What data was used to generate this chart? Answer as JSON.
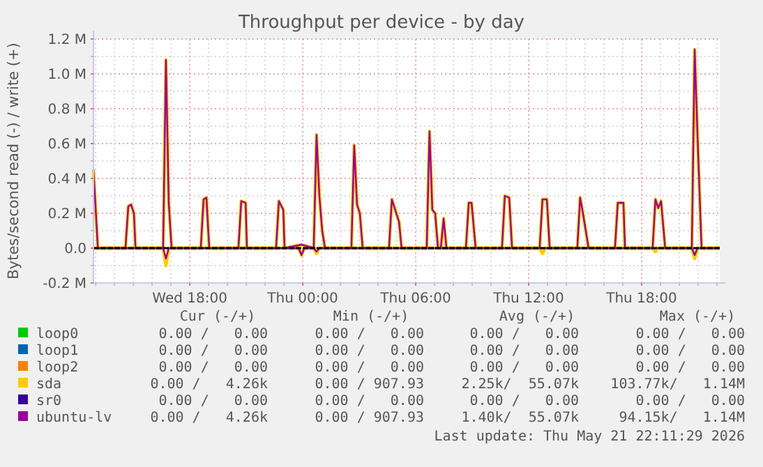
{
  "chart_data": {
    "type": "line",
    "title": "Throughput per device - by day",
    "ylabel": "Bytes/second read (-) / write (+)",
    "x": [
      "2026-05-20T12:53",
      "2026-05-20T13:07",
      "2026-05-20T14:35",
      "2026-05-20T14:44",
      "2026-05-20T14:53",
      "2026-05-20T15:02",
      "2026-05-20T15:07",
      "2026-05-20T16:35",
      "2026-05-20T16:44",
      "2026-05-20T16:53",
      "2026-05-20T17:02",
      "2026-05-20T18:35",
      "2026-05-20T18:44",
      "2026-05-20T18:53",
      "2026-05-20T19:02",
      "2026-05-20T20:35",
      "2026-05-20T20:44",
      "2026-05-20T20:58",
      "2026-05-20T21:02",
      "2026-05-20T22:35",
      "2026-05-20T22:44",
      "2026-05-20T22:58",
      "2026-05-20T23:02",
      "2026-05-20T23:56",
      "2026-05-21T00:35",
      "2026-05-21T00:44",
      "2026-05-21T00:53",
      "2026-05-21T01:02",
      "2026-05-21T01:11",
      "2026-05-21T02:35",
      "2026-05-21T02:44",
      "2026-05-21T02:53",
      "2026-05-21T03:02",
      "2026-05-21T03:11",
      "2026-05-21T04:35",
      "2026-05-21T04:44",
      "2026-05-21T05:07",
      "2026-05-21T05:15",
      "2026-05-21T06:35",
      "2026-05-21T06:44",
      "2026-05-21T06:53",
      "2026-05-21T07:02",
      "2026-05-21T07:11",
      "2026-05-21T07:20",
      "2026-05-21T07:29",
      "2026-05-21T07:38",
      "2026-05-21T08:40",
      "2026-05-21T08:49",
      "2026-05-21T08:58",
      "2026-05-21T09:11",
      "2026-05-21T10:35",
      "2026-05-21T10:44",
      "2026-05-21T10:58",
      "2026-05-21T11:07",
      "2026-05-21T12:35",
      "2026-05-21T12:44",
      "2026-05-21T12:58",
      "2026-05-21T13:07",
      "2026-05-21T14:35",
      "2026-05-21T14:44",
      "2026-05-21T14:53",
      "2026-05-21T15:11",
      "2026-05-21T16:35",
      "2026-05-21T16:44",
      "2026-05-21T17:02",
      "2026-05-21T17:07",
      "2026-05-21T18:35",
      "2026-05-21T18:44",
      "2026-05-21T18:53",
      "2026-05-21T19:02",
      "2026-05-21T19:15",
      "2026-05-21T20:40",
      "2026-05-21T20:49",
      "2026-05-21T20:58",
      "2026-05-21T21:11",
      "2026-05-21T22:09"
    ],
    "series": [
      {
        "name": "loop0",
        "color": "#00cc00",
        "values": [
          null,
          null,
          null,
          null,
          null,
          null,
          null,
          null,
          null,
          null,
          null,
          null,
          null,
          null,
          null,
          null,
          null,
          null,
          null,
          null,
          null,
          null,
          null,
          null,
          null,
          null,
          null,
          null,
          null,
          null,
          null,
          null,
          null,
          null,
          null,
          null,
          null,
          null,
          null,
          null,
          null,
          null,
          null,
          null,
          null,
          null,
          null,
          null,
          null,
          null,
          null,
          null,
          null,
          null,
          null,
          null,
          null,
          null,
          null,
          null,
          null,
          null,
          null,
          null,
          null,
          null,
          null,
          null,
          null,
          null,
          null,
          null,
          null,
          null,
          null,
          null
        ]
      },
      {
        "name": "loop1",
        "color": "#0066b3",
        "values": [
          null,
          null,
          null,
          null,
          null,
          null,
          null,
          null,
          null,
          null,
          null,
          null,
          null,
          null,
          null,
          null,
          null,
          null,
          null,
          null,
          null,
          null,
          null,
          null,
          null,
          null,
          null,
          null,
          null,
          null,
          null,
          null,
          null,
          null,
          null,
          null,
          null,
          null,
          null,
          null,
          null,
          null,
          null,
          null,
          null,
          null,
          null,
          null,
          null,
          null,
          null,
          null,
          null,
          null,
          null,
          null,
          null,
          null,
          null,
          null,
          null,
          null,
          null,
          null,
          null,
          null,
          null,
          null,
          null,
          null,
          null,
          null,
          null,
          null,
          null,
          null
        ]
      },
      {
        "name": "loop2",
        "color": "#ff8000",
        "values": [
          null,
          null,
          null,
          null,
          null,
          null,
          null,
          null,
          null,
          null,
          null,
          null,
          null,
          null,
          null,
          null,
          null,
          null,
          null,
          null,
          null,
          null,
          null,
          null,
          null,
          null,
          null,
          null,
          null,
          null,
          null,
          null,
          null,
          null,
          null,
          null,
          null,
          null,
          null,
          null,
          null,
          null,
          null,
          null,
          null,
          null,
          null,
          null,
          null,
          null,
          null,
          null,
          null,
          null,
          null,
          null,
          null,
          null,
          null,
          null,
          null,
          null,
          null,
          null,
          null,
          null,
          null,
          null,
          null,
          null,
          null,
          null,
          null,
          null,
          null,
          null
        ]
      },
      {
        "name": "sda",
        "color": "#ffcc00",
        "values": [
          0.45,
          0,
          0,
          0.24,
          0.25,
          0.2,
          0,
          0,
          1.08,
          0.26,
          0,
          0,
          0.28,
          0.29,
          0,
          0,
          0.27,
          0.26,
          0,
          0,
          0.27,
          0.22,
          0,
          0.02,
          0,
          0.65,
          0.3,
          0.1,
          0,
          0,
          0.59,
          0.25,
          0.2,
          0,
          0,
          0.28,
          0.15,
          0,
          0,
          0.67,
          0.22,
          0.2,
          0,
          0,
          0.17,
          0,
          0,
          0.26,
          0.26,
          0,
          0,
          0.3,
          0.29,
          0,
          0,
          0.28,
          0.28,
          0,
          0,
          0.29,
          0.2,
          0,
          0,
          0.26,
          0.26,
          0,
          0,
          0.28,
          0.23,
          0.27,
          0,
          0,
          1.14,
          0.65,
          0,
          0
        ]
      },
      {
        "color": "#ffcc00",
        "x": [
          "2026-05-20T12:53",
          "2026-05-20T16:35",
          "2026-05-20T16:44",
          "2026-05-20T16:53",
          "2026-05-20T23:47",
          "2026-05-20T23:56",
          "2026-05-21T00:05",
          "2026-05-21T00:35",
          "2026-05-21T00:44",
          "2026-05-21T00:53",
          "2026-05-21T12:35",
          "2026-05-21T12:44",
          "2026-05-21T12:53",
          "2026-05-21T18:35",
          "2026-05-21T18:44",
          "2026-05-21T18:53",
          "2026-05-21T20:40",
          "2026-05-21T20:49",
          "2026-05-21T20:58",
          "2026-05-21T22:09"
        ],
        "values": [
          0,
          0,
          -0.1,
          0,
          0,
          -0.04,
          0,
          0,
          -0.03,
          0,
          0,
          -0.03,
          0,
          0,
          -0.02,
          0,
          0,
          -0.06,
          0,
          0
        ]
      },
      {
        "name": "sr0",
        "color": "#330099",
        "values": [
          null,
          null,
          null,
          null,
          null,
          null,
          null,
          null,
          null,
          null,
          null,
          null,
          null,
          null,
          null,
          null,
          null,
          null,
          null,
          null,
          null,
          null,
          null,
          null,
          null,
          null,
          null,
          null,
          null,
          null,
          null,
          null,
          null,
          null,
          null,
          null,
          null,
          null,
          null,
          null,
          null,
          null,
          null,
          null,
          null,
          null,
          null,
          null,
          null,
          null,
          null,
          null,
          null,
          null,
          null,
          null,
          null,
          null,
          null,
          null,
          null,
          null,
          null,
          null,
          null,
          null,
          null,
          null,
          null,
          null,
          null,
          null,
          null,
          null,
          null,
          null
        ]
      },
      {
        "name": "ubuntu-lv",
        "color": "#990099",
        "values": [
          0.45,
          0,
          0,
          0.24,
          0.25,
          0.2,
          0,
          0,
          1.08,
          0.26,
          0,
          0,
          0.28,
          0.29,
          0,
          0,
          0.27,
          0.26,
          0,
          0,
          0.27,
          0.22,
          0,
          0.02,
          0,
          0.65,
          0.3,
          0.1,
          0,
          0,
          0.59,
          0.25,
          0.2,
          0,
          0,
          0.28,
          0.15,
          0,
          0,
          0.67,
          0.22,
          0.2,
          0,
          0,
          0.17,
          0,
          0,
          0.26,
          0.26,
          0,
          0,
          0.3,
          0.29,
          0,
          0,
          0.28,
          0.28,
          0,
          0,
          0.29,
          0.2,
          0,
          0,
          0.26,
          0.26,
          0,
          0,
          0.28,
          0.23,
          0.27,
          0,
          0,
          1.14,
          0.65,
          0,
          0
        ]
      },
      {
        "color": "#990099",
        "x": [
          "2026-05-20T12:53",
          "2026-05-20T16:35",
          "2026-05-20T16:44",
          "2026-05-20T16:53",
          "2026-05-20T23:47",
          "2026-05-20T23:56",
          "2026-05-21T00:05",
          "2026-05-21T00:35",
          "2026-05-21T00:44",
          "2026-05-21T00:53",
          "2026-05-21T20:40",
          "2026-05-21T20:49",
          "2026-05-21T20:58",
          "2026-05-21T22:09"
        ],
        "values": [
          0,
          0,
          -0.06,
          0,
          0,
          -0.04,
          0,
          0,
          -0.02,
          0,
          0,
          -0.04,
          0,
          0
        ]
      }
    ],
    "xlim": [
      "2026-05-20T12:53",
      "2026-05-21T22:09"
    ],
    "xticks": [
      {
        "value": "2026-05-20T13:00",
        "label": null
      },
      {
        "value": "2026-05-20T14:00",
        "label": null
      },
      {
        "value": "2026-05-20T15:00",
        "label": null
      },
      {
        "value": "2026-05-20T16:00",
        "label": null
      },
      {
        "value": "2026-05-20T17:00",
        "label": null
      },
      {
        "value": "2026-05-20T18:00",
        "label": "Wed 18:00"
      },
      {
        "value": "2026-05-20T19:00",
        "label": null
      },
      {
        "value": "2026-05-20T20:00",
        "label": null
      },
      {
        "value": "2026-05-20T21:00",
        "label": null
      },
      {
        "value": "2026-05-20T22:00",
        "label": null
      },
      {
        "value": "2026-05-20T23:00",
        "label": null
      },
      {
        "value": "2026-05-21T00:00",
        "label": "Thu 00:00"
      },
      {
        "value": "2026-05-21T01:00",
        "label": null
      },
      {
        "value": "2026-05-21T02:00",
        "label": null
      },
      {
        "value": "2026-05-21T03:00",
        "label": null
      },
      {
        "value": "2026-05-21T04:00",
        "label": null
      },
      {
        "value": "2026-05-21T05:00",
        "label": null
      },
      {
        "value": "2026-05-21T06:00",
        "label": "Thu 06:00"
      },
      {
        "value": "2026-05-21T07:00",
        "label": null
      },
      {
        "value": "2026-05-21T08:00",
        "label": null
      },
      {
        "value": "2026-05-21T09:00",
        "label": null
      },
      {
        "value": "2026-05-21T10:00",
        "label": null
      },
      {
        "value": "2026-05-21T11:00",
        "label": null
      },
      {
        "value": "2026-05-21T12:00",
        "label": "Thu 12:00"
      },
      {
        "value": "2026-05-21T13:00",
        "label": null
      },
      {
        "value": "2026-05-21T14:00",
        "label": null
      },
      {
        "value": "2026-05-21T15:00",
        "label": null
      },
      {
        "value": "2026-05-21T16:00",
        "label": null
      },
      {
        "value": "2026-05-21T17:00",
        "label": null
      },
      {
        "value": "2026-05-21T18:00",
        "label": "Thu 18:00"
      },
      {
        "value": "2026-05-21T19:00",
        "label": null
      },
      {
        "value": "2026-05-21T20:00",
        "label": null
      },
      {
        "value": "2026-05-21T21:00",
        "label": null
      },
      {
        "value": "2026-05-21T22:00",
        "label": null
      }
    ],
    "ylim": [
      -0.2,
      1.2
    ],
    "yticks": [
      {
        "value": -0.2,
        "label": "-0.2 M"
      },
      {
        "value": -0.1,
        "label": null
      },
      {
        "value": 0,
        "label": "0.0"
      },
      {
        "value": 0.1,
        "label": null
      },
      {
        "value": 0.2,
        "label": "0.2 M"
      },
      {
        "value": 0.3,
        "label": null
      },
      {
        "value": 0.4,
        "label": "0.4 M"
      },
      {
        "value": 0.5,
        "label": null
      },
      {
        "value": 0.6,
        "label": "0.6 M"
      },
      {
        "value": 0.7,
        "label": null
      },
      {
        "value": 0.8,
        "label": "0.8 M"
      },
      {
        "value": 0.9,
        "label": null
      },
      {
        "value": 1.0,
        "label": "1.0 M"
      },
      {
        "value": 1.1,
        "label": null
      },
      {
        "value": 1.2,
        "label": "1.2 M"
      }
    ],
    "ref_lines": [
      {
        "axis": "y",
        "value": 0,
        "color": "#000000"
      }
    ],
    "grid": true,
    "legend": "bottom left",
    "annotations": [
      "Cur (-/+)",
      "Min (-/+)",
      "Avg (-/+)",
      "Max (-/+)",
      "0.00 /   0.00",
      "0.00 /   0.00",
      "0.00 /   0.00",
      "0.00 /   0.00",
      "0.00 /   0.00",
      "0.00 /   0.00",
      "0.00 /   0.00",
      "0.00 /   0.00",
      "0.00 /   0.00",
      "0.00 /   0.00",
      "0.00 /   0.00",
      "0.00 /   0.00",
      "0.00 /   4.26k",
      "0.00 / 907.93",
      "2.25k/  55.07k",
      "103.77k/   1.14M",
      "0.00 /   0.00",
      "0.00 /   0.00",
      "0.00 /   0.00",
      "0.00 /   0.00",
      "0.00 /   4.26k",
      "0.00 / 907.93",
      "1.40k/  55.07k",
      "94.15k/   1.14M",
      "Last update: Thu May 21 22:11:29 2026"
    ]
  }
}
